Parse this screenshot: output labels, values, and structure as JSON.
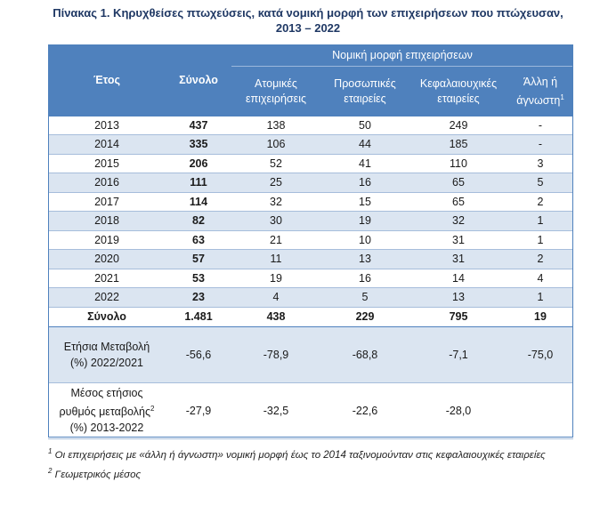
{
  "title": {
    "line1": "Πίνακας 1. Κηρυχθείσες πτωχεύσεις, κατά νομική μορφή των επιχειρήσεων που πτώχευσαν,",
    "line2": "2013 – 2022"
  },
  "header": {
    "year": "Έτος",
    "total": "Σύνολο",
    "group": "Νομική μορφή επιχειρήσεων",
    "col_individual": "Ατομικές επιχειρήσεις",
    "col_partnership": "Προσωπικές εταιρείες",
    "col_capital": "Κεφαλαιουχικές εταιρείες",
    "col_other": "Άλλη ή άγνωστη",
    "col_other_sup": "1"
  },
  "rows": [
    {
      "year": "2013",
      "total": "437",
      "ind": "138",
      "par": "50",
      "cap": "249",
      "oth": "-"
    },
    {
      "year": "2014",
      "total": "335",
      "ind": "106",
      "par": "44",
      "cap": "185",
      "oth": "-"
    },
    {
      "year": "2015",
      "total": "206",
      "ind": "52",
      "par": "41",
      "cap": "110",
      "oth": "3"
    },
    {
      "year": "2016",
      "total": "111",
      "ind": "25",
      "par": "16",
      "cap": "65",
      "oth": "5"
    },
    {
      "year": "2017",
      "total": "114",
      "ind": "32",
      "par": "15",
      "cap": "65",
      "oth": "2"
    },
    {
      "year": "2018",
      "total": "82",
      "ind": "30",
      "par": "19",
      "cap": "32",
      "oth": "1"
    },
    {
      "year": "2019",
      "total": "63",
      "ind": "21",
      "par": "10",
      "cap": "31",
      "oth": "1"
    },
    {
      "year": "2020",
      "total": "57",
      "ind": "11",
      "par": "13",
      "cap": "31",
      "oth": "2"
    },
    {
      "year": "2021",
      "total": "53",
      "ind": "19",
      "par": "16",
      "cap": "14",
      "oth": "4"
    },
    {
      "year": "2022",
      "total": "23",
      "ind": "4",
      "par": "5",
      "cap": "13",
      "oth": "1"
    }
  ],
  "total_row": {
    "label": "Σύνολο",
    "total": "1.481",
    "ind": "438",
    "par": "229",
    "cap": "795",
    "oth": "19"
  },
  "annual_change": {
    "label_line1": "Ετήσια Μεταβολή",
    "label_line2": "(%) 2022/2021",
    "total": "-56,6",
    "ind": "-78,9",
    "par": "-68,8",
    "cap": "-7,1",
    "oth": "-75,0"
  },
  "avg_rate": {
    "label_line1": "Μέσος ετήσιος",
    "label_line2": "ρυθμός μεταβολής",
    "label_sup": "2",
    "label_line3": "(%) 2013-2022",
    "total": "-27,9",
    "ind": "-32,5",
    "par": "-22,6",
    "cap": "-28,0",
    "oth": ""
  },
  "footnotes": {
    "n1_mark": "1",
    "n1_text": "Οι επιχειρήσεις με «άλλη ή άγνωστη» νομική μορφή έως το 2014 ταξινομούνταν στις κεφαλαιουχικές εταιρείες",
    "n2_mark": "2",
    "n2_text": "Γεωμετρικός μέσος"
  },
  "colors": {
    "header_bg": "#4f81bd",
    "alt_row": "#dbe5f1",
    "title": "#1f3864"
  }
}
